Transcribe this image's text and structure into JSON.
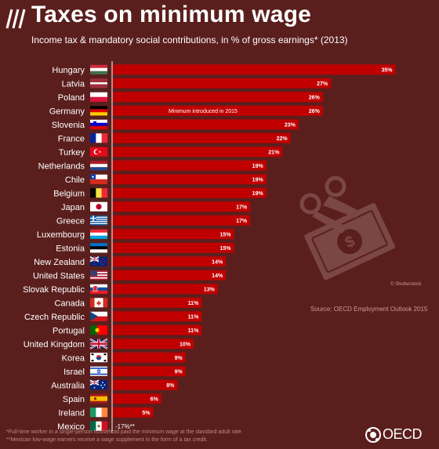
{
  "header": {
    "title": "Taxes on minimum wage",
    "subtitle": "Income tax & mandatory social contributions, in % of gross earnings* (2013)"
  },
  "source": "Source: OECD Employment Outlook 2015",
  "image_credit": "© Shutterstock",
  "footnotes": [
    "*Full-time worker in a single-person household paid the minimum wage at the standard adult rate.",
    "**Mexican low-wage earners receive a wage supplement in the form of a tax credit."
  ],
  "logo": {
    "text": "OECD"
  },
  "colors": {
    "background": "#5a1f1d",
    "bar": "#c00000",
    "axis": "#ffffff",
    "illustration": "#7a4744"
  },
  "chart_data": {
    "type": "bar",
    "orientation": "horizontal",
    "categories": [
      "Hungary",
      "Latvia",
      "Poland",
      "Germany",
      "Slovenia",
      "France",
      "Turkey",
      "Netherlands",
      "Chile",
      "Belgium",
      "Japan",
      "Greece",
      "Luxembourg",
      "Estonia",
      "New Zealand",
      "United States",
      "Slovak Republic",
      "Canada",
      "Czech Republic",
      "Portugal",
      "United Kingdom",
      "Korea",
      "Israel",
      "Australia",
      "Spain",
      "Ireland",
      "Mexico"
    ],
    "values": [
      35,
      27,
      26,
      26,
      23,
      22,
      21,
      19,
      19,
      19,
      17,
      17,
      15,
      15,
      14,
      14,
      13,
      11,
      11,
      11,
      10,
      9,
      9,
      8,
      6,
      5,
      -17
    ],
    "value_labels": [
      "35%",
      "27%",
      "26%",
      "26%",
      "23%",
      "22%",
      "21%",
      "19%",
      "19%",
      "19%",
      "17%",
      "17%",
      "15%",
      "15%",
      "14%",
      "14%",
      "13%",
      "11%",
      "11%",
      "11%",
      "10%",
      "9%",
      "9%",
      "8%",
      "6%",
      "5%",
      "-17%**"
    ],
    "annotations": [
      {
        "category": "Germany",
        "text": "Minimum introduced in 2015"
      }
    ],
    "flags": [
      "hungary-flag",
      "latvia-flag",
      "poland-flag",
      "germany-flag",
      "slovenia-flag",
      "france-flag",
      "turkey-flag",
      "netherlands-flag",
      "chile-flag",
      "belgium-flag",
      "japan-flag",
      "greece-flag",
      "luxembourg-flag",
      "estonia-flag",
      "new-zealand-flag",
      "united-states-flag",
      "slovak-republic-flag",
      "canada-flag",
      "czech-republic-flag",
      "portugal-flag",
      "united-kingdom-flag",
      "korea-flag",
      "israel-flag",
      "australia-flag",
      "spain-flag",
      "ireland-flag",
      "mexico-flag"
    ],
    "unit": "%",
    "xlim": [
      0,
      35
    ]
  }
}
